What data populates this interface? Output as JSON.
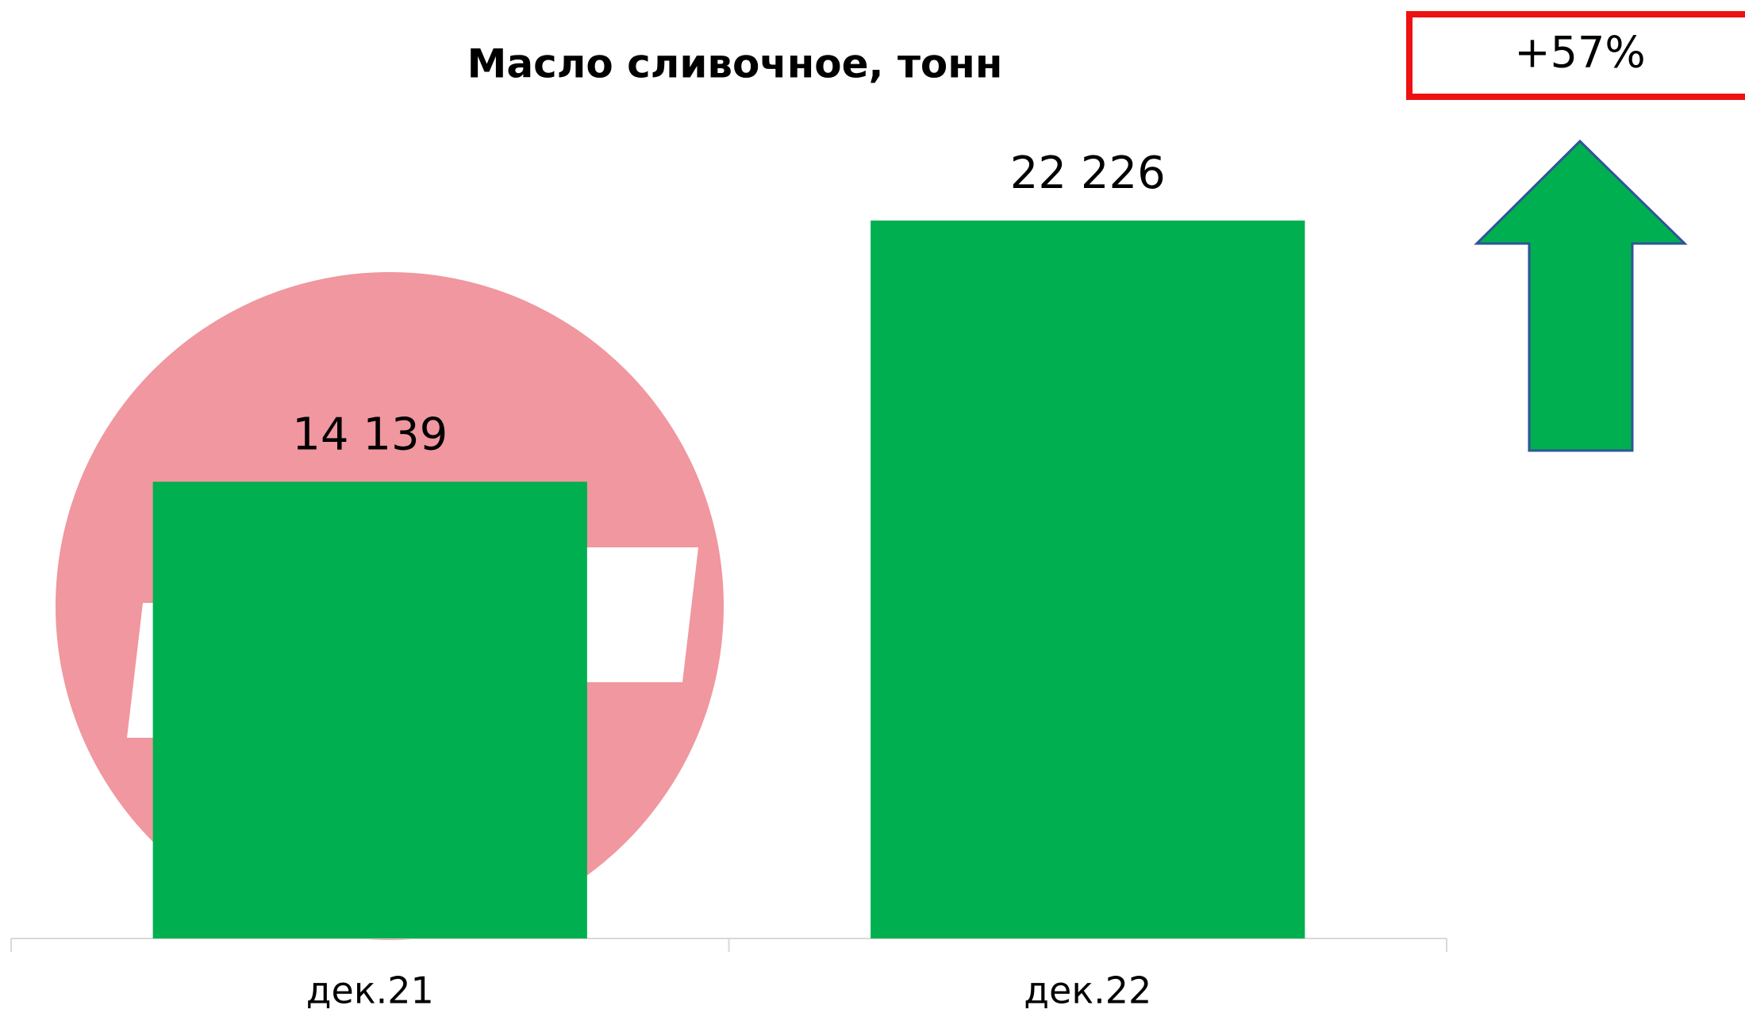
{
  "chart_data": {
    "type": "bar",
    "title": "Масло сливочное, тонн",
    "categories": [
      "дек.21",
      "дек.22"
    ],
    "values": [
      14139,
      22226
    ],
    "value_labels": [
      "14 139",
      "22 226"
    ],
    "color": "#00b050",
    "annotation": "+57%"
  }
}
